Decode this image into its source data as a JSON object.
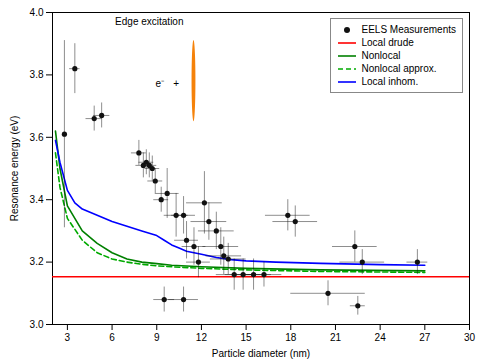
{
  "chart_data": {
    "type": "line",
    "xlabel": "Particle diameter (nm)",
    "ylabel": "Resonance energy (eV)",
    "xlim": [
      2,
      30
    ],
    "ylim": [
      3.0,
      4.0
    ],
    "xticks": [
      3,
      6,
      9,
      12,
      15,
      18,
      21,
      24,
      27,
      30
    ],
    "yticks": [
      {
        "value": 3.0,
        "label": "3.0"
      },
      3.2,
      3.4,
      3.6,
      3.8,
      {
        "value": 4.0,
        "label": "4.0"
      }
    ],
    "grid": false,
    "legend": "upper right",
    "series": [
      {
        "name": "EELS Measurements",
        "type": "scatter",
        "marker": "circle",
        "color": "#111111",
        "x": [
          2.8,
          3.5,
          4.8,
          5.3,
          7.8,
          8.1,
          8.3,
          8.5,
          8.7,
          8.9,
          9.3,
          9.7,
          10.3,
          10.8,
          11.0,
          11.5,
          11.8,
          9.5,
          12.2,
          12.5,
          13.0,
          13.3,
          13.5,
          13.8,
          14.2,
          14.8,
          10.8,
          15.5,
          16.2,
          17.8,
          18.3,
          20.5,
          22.3,
          22.8,
          22.5,
          26.5
        ],
        "values": [
          3.61,
          3.82,
          3.66,
          3.67,
          3.55,
          3.51,
          3.52,
          3.51,
          3.5,
          3.46,
          3.4,
          3.42,
          3.35,
          3.35,
          3.27,
          3.25,
          3.2,
          3.08,
          3.39,
          3.33,
          3.3,
          3.25,
          3.22,
          3.21,
          3.16,
          3.16,
          3.08,
          3.16,
          3.16,
          3.35,
          3.33,
          3.1,
          3.25,
          3.2,
          3.06,
          3.2
        ],
        "xerr": [
          0.0,
          0.35,
          0.55,
          0.55,
          0.5,
          0.5,
          0.5,
          0.5,
          0.5,
          0.5,
          0.5,
          0.8,
          0.8,
          0.8,
          0.8,
          0.8,
          0.8,
          0.7,
          1.2,
          1.2,
          1.2,
          1.2,
          1.2,
          1.2,
          1.2,
          1.2,
          1.0,
          1.2,
          1.2,
          1.5,
          1.5,
          2.5,
          1.5,
          1.5,
          0.5,
          0.7
        ],
        "yerr": [
          0.3,
          0.08,
          0.04,
          0.04,
          0.04,
          0.04,
          0.04,
          0.04,
          0.04,
          0.04,
          0.04,
          0.08,
          0.07,
          0.06,
          0.06,
          0.06,
          0.05,
          0.04,
          0.1,
          0.06,
          0.06,
          0.06,
          0.06,
          0.05,
          0.05,
          0.05,
          0.04,
          0.05,
          0.04,
          0.05,
          0.05,
          0.04,
          0.05,
          0.04,
          0.03,
          0.04
        ]
      },
      {
        "name": "Local drude",
        "type": "hline",
        "color": "#ff0000",
        "line_style": "solid",
        "values": [
          3.153
        ]
      },
      {
        "name": "Nonlocal",
        "type": "line",
        "color": "#008000",
        "line_style": "solid",
        "x": [
          2.2,
          2.5,
          3.0,
          4.0,
          5.0,
          6.0,
          7.0,
          8.0,
          9.0,
          10.0,
          12.0,
          15.0,
          20.0,
          27.0
        ],
        "values": [
          3.62,
          3.5,
          3.38,
          3.3,
          3.26,
          3.23,
          3.21,
          3.2,
          3.195,
          3.19,
          3.185,
          3.18,
          3.175,
          3.172
        ]
      },
      {
        "name": "Nonlocal approx.",
        "type": "line",
        "color": "#00aa00",
        "line_style": "dashed",
        "x": [
          2.2,
          2.5,
          3.0,
          4.0,
          5.0,
          6.0,
          7.0,
          8.0,
          9.0,
          10.0,
          12.0,
          15.0,
          20.0,
          27.0
        ],
        "values": [
          3.55,
          3.44,
          3.34,
          3.27,
          3.23,
          3.21,
          3.2,
          3.193,
          3.188,
          3.185,
          3.18,
          3.175,
          3.17,
          3.167
        ]
      },
      {
        "name": "Local inhom.",
        "type": "line",
        "color": "#0000ff",
        "line_style": "solid",
        "x": [
          2.2,
          2.5,
          3.0,
          3.5,
          4.0,
          5.0,
          6.0,
          7.0,
          8.0,
          9.0,
          9.5,
          10.0,
          10.5,
          11.0,
          12.0,
          13.0,
          14.0,
          15.0,
          17.0,
          20.0,
          24.0,
          27.0
        ],
        "values": [
          3.59,
          3.52,
          3.43,
          3.39,
          3.37,
          3.35,
          3.33,
          3.315,
          3.3,
          3.285,
          3.27,
          3.255,
          3.245,
          3.235,
          3.225,
          3.215,
          3.208,
          3.204,
          3.2,
          3.196,
          3.192,
          3.19
        ]
      }
    ],
    "annotations": [
      {
        "text": "Edge excitation",
        "x": 8.5,
        "y": 3.97
      },
      {
        "text": "e⁻",
        "x": 9.2,
        "y": 3.77
      },
      {
        "text": "+",
        "x": 10.3,
        "y": 3.77
      }
    ],
    "circle": {
      "x": 11.5,
      "y": 3.78,
      "r": 0.13,
      "color": "#f5820a"
    }
  }
}
